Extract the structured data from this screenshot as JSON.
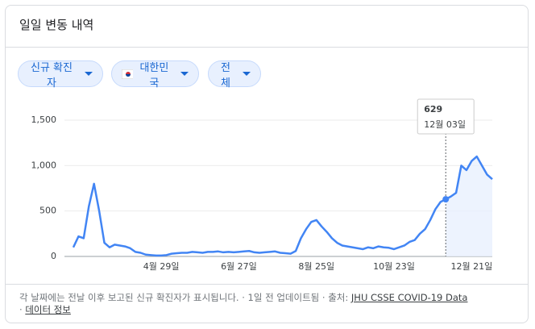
{
  "header": {
    "title": "일일 변동 내역"
  },
  "filters": [
    "신규 확진자",
    "대한민국",
    "전체"
  ],
  "tooltip": {
    "value": 629,
    "date": "12월 03일"
  },
  "footer": {
    "note": "각 날짜에는 전날 이후 보고된 신규 확진자가 표시됩니다. · 1일 전 업데이트됨 · 출처:",
    "source": "JHU CSSE COVID-19 Data",
    "separator": "·",
    "link": "데이터 정보"
  },
  "chart_data": {
    "type": "line",
    "categories": [
      null,
      null,
      null,
      null,
      null,
      null,
      null,
      null,
      null,
      null,
      null,
      null,
      null,
      null,
      null,
      null,
      null,
      "4월 29일",
      null,
      null,
      null,
      null,
      null,
      null,
      null,
      null,
      null,
      null,
      null,
      null,
      null,
      null,
      "6월 27일",
      null,
      null,
      null,
      null,
      null,
      null,
      null,
      null,
      null,
      null,
      null,
      null,
      null,
      null,
      "8월 25일",
      null,
      null,
      null,
      null,
      null,
      null,
      null,
      null,
      null,
      null,
      null,
      null,
      null,
      null,
      "10월 23일",
      null,
      null,
      null,
      null,
      null,
      null,
      null,
      null,
      null,
      null,
      null,
      null,
      null,
      null,
      "12월 21일",
      null,
      null,
      null,
      null
    ],
    "series": [
      {
        "name": "신규 확진자",
        "color": "#4285f4",
        "values": [
          100,
          220,
          200,
          550,
          800,
          500,
          150,
          100,
          130,
          120,
          110,
          90,
          50,
          40,
          20,
          15,
          10,
          10,
          15,
          30,
          35,
          40,
          40,
          50,
          45,
          40,
          50,
          50,
          55,
          45,
          50,
          45,
          50,
          55,
          60,
          45,
          40,
          45,
          50,
          55,
          40,
          35,
          30,
          60,
          200,
          300,
          380,
          400,
          330,
          270,
          200,
          150,
          120,
          110,
          100,
          90,
          80,
          100,
          90,
          110,
          100,
          95,
          80,
          100,
          120,
          160,
          180,
          250,
          300,
          400,
          520,
          600,
          629,
          660,
          700,
          1000,
          950,
          1050,
          1100,
          1000,
          900,
          850
        ]
      }
    ],
    "ylim": [
      0,
      1500
    ],
    "yticks": [
      0,
      500,
      {
        "value": 1000,
        "label": "1,000"
      },
      {
        "value": 1500,
        "label": "1,500"
      }
    ],
    "grid": true
  }
}
